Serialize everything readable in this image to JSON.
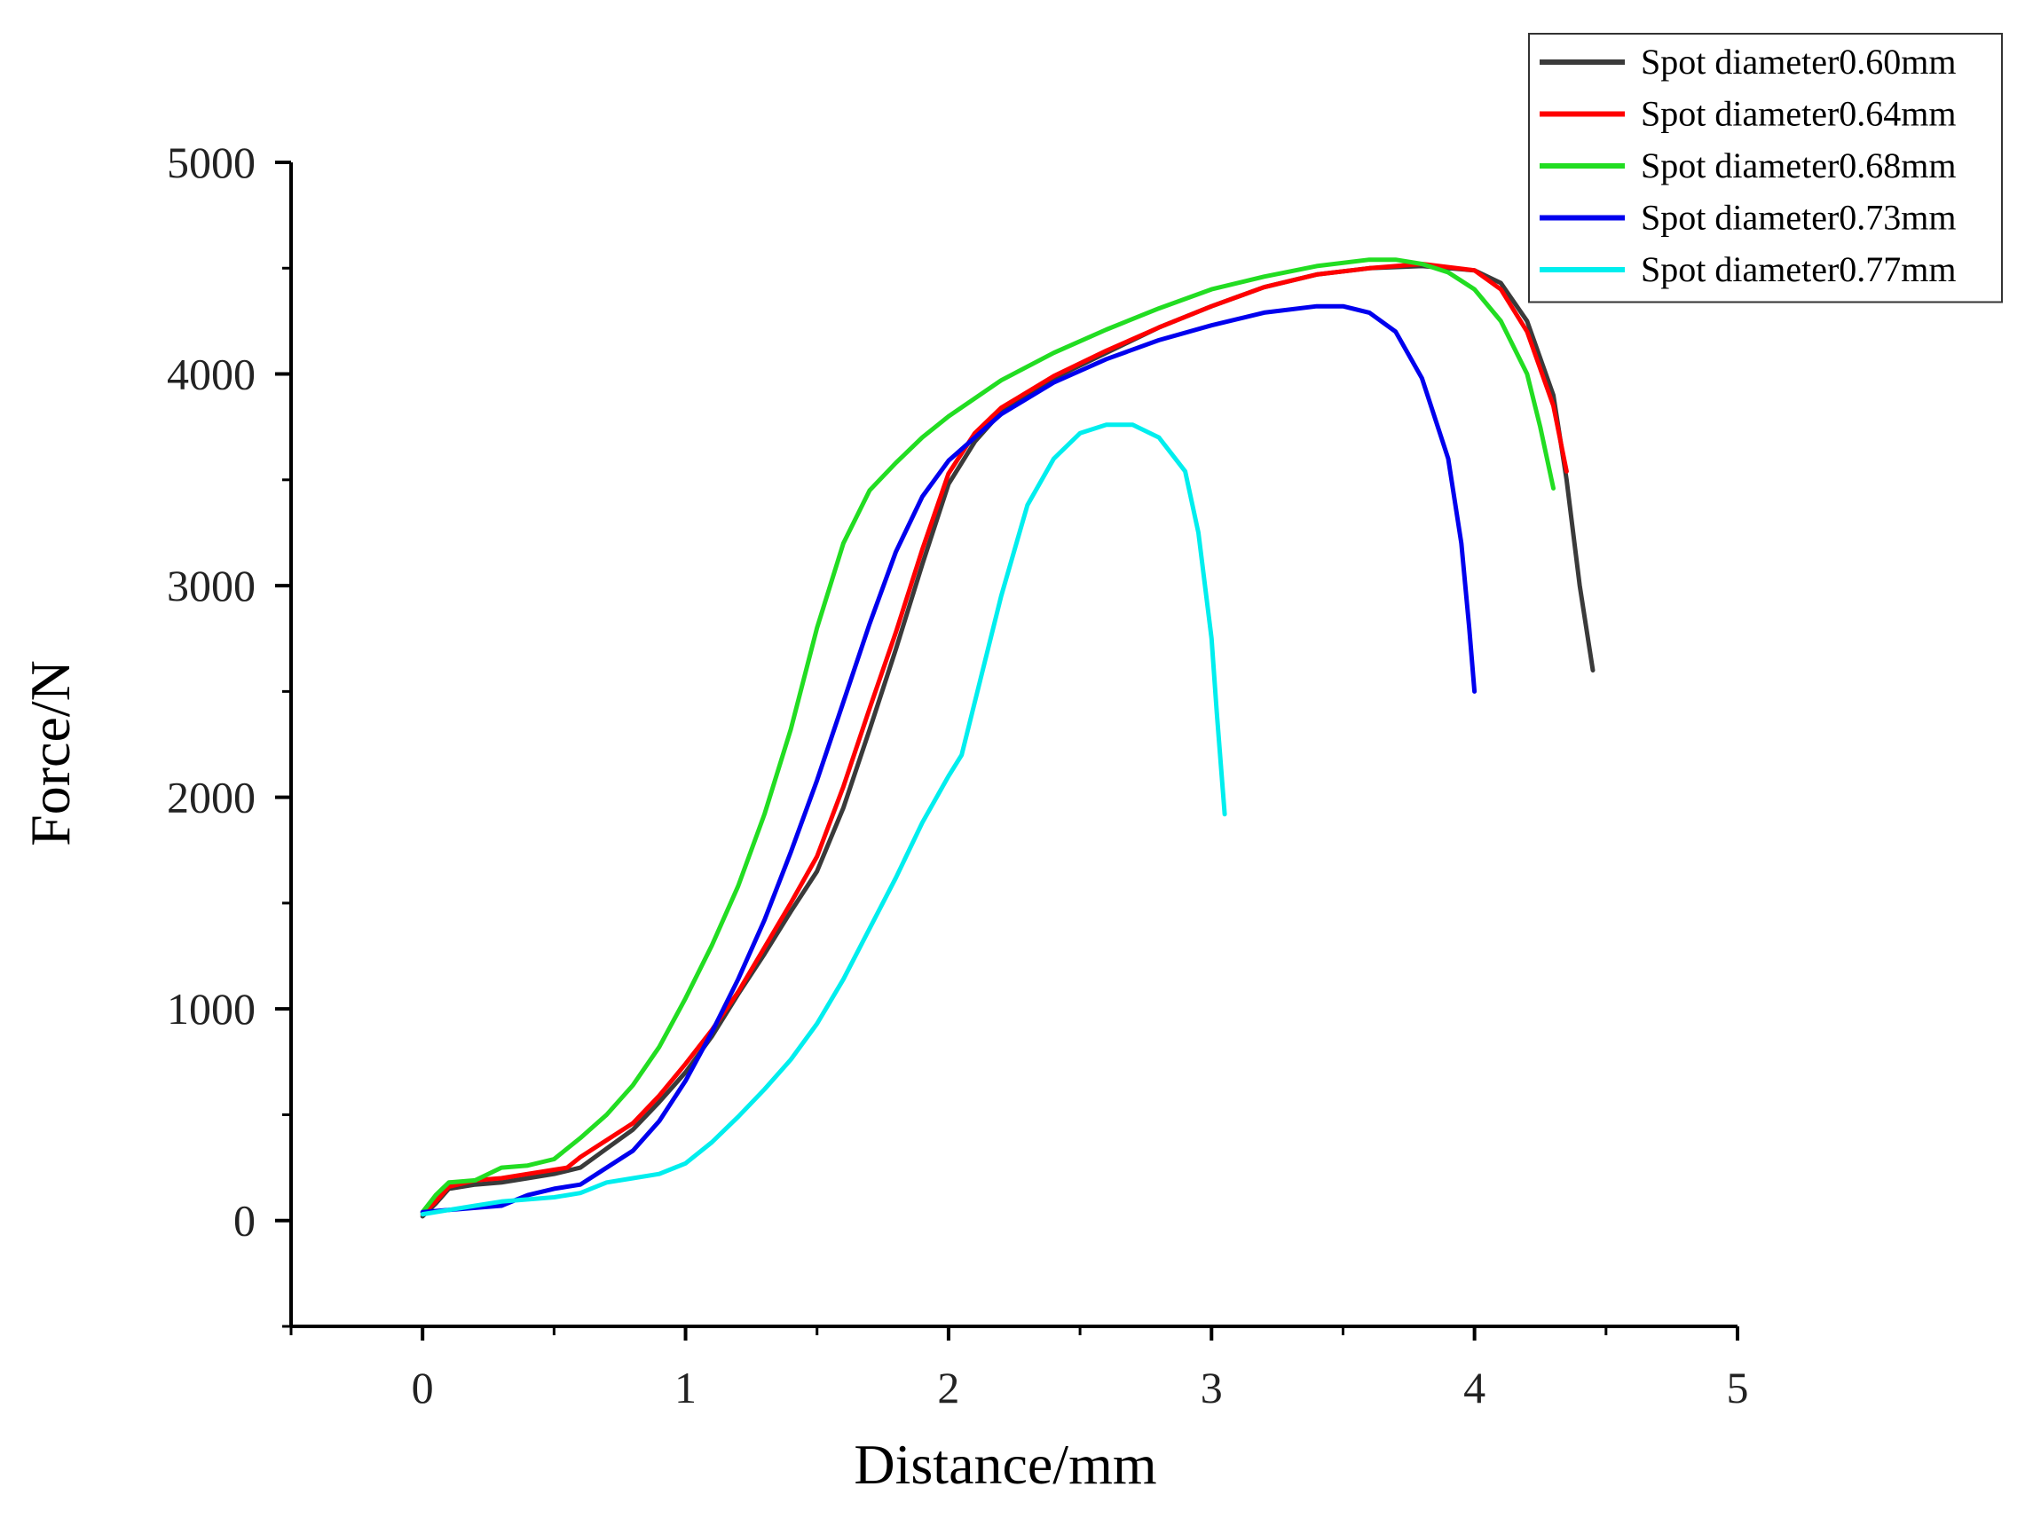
{
  "chart_data": {
    "type": "line",
    "title": "",
    "xlabel": "Distance/mm",
    "ylabel": "Force/N",
    "xlim": [
      -0.5,
      5
    ],
    "ylim": [
      -500,
      5000
    ],
    "xticks": [
      0,
      1,
      2,
      3,
      4,
      5
    ],
    "yticks": [
      0,
      1000,
      2000,
      3000,
      4000,
      5000
    ],
    "xtick_labels": [
      "0",
      "1",
      "2",
      "3",
      "4",
      "5"
    ],
    "ytick_labels": [
      "0",
      "1000",
      "2000",
      "3000",
      "4000",
      "5000"
    ],
    "legend_position": "top-right",
    "series": [
      {
        "name": "Spot diameter0.60mm",
        "color": "#3a3a3a",
        "points": [
          [
            0,
            20
          ],
          [
            0.05,
            80
          ],
          [
            0.1,
            150
          ],
          [
            0.2,
            170
          ],
          [
            0.3,
            180
          ],
          [
            0.4,
            200
          ],
          [
            0.5,
            220
          ],
          [
            0.6,
            250
          ],
          [
            0.7,
            340
          ],
          [
            0.8,
            430
          ],
          [
            0.9,
            560
          ],
          [
            1.0,
            700
          ],
          [
            1.1,
            870
          ],
          [
            1.2,
            1070
          ],
          [
            1.3,
            1260
          ],
          [
            1.4,
            1460
          ],
          [
            1.5,
            1650
          ],
          [
            1.6,
            1950
          ],
          [
            1.7,
            2320
          ],
          [
            1.8,
            2700
          ],
          [
            1.9,
            3100
          ],
          [
            2.0,
            3480
          ],
          [
            2.1,
            3680
          ],
          [
            2.2,
            3820
          ],
          [
            2.4,
            3980
          ],
          [
            2.6,
            4100
          ],
          [
            2.8,
            4220
          ],
          [
            3.0,
            4320
          ],
          [
            3.2,
            4410
          ],
          [
            3.4,
            4470
          ],
          [
            3.6,
            4500
          ],
          [
            3.8,
            4510
          ],
          [
            4.0,
            4490
          ],
          [
            4.1,
            4430
          ],
          [
            4.2,
            4250
          ],
          [
            4.3,
            3900
          ],
          [
            4.35,
            3500
          ],
          [
            4.4,
            3000
          ],
          [
            4.45,
            2600
          ]
        ]
      },
      {
        "name": "Spot diameter0.64mm",
        "color": "#ff0000",
        "points": [
          [
            0,
            30
          ],
          [
            0.05,
            90
          ],
          [
            0.1,
            160
          ],
          [
            0.2,
            190
          ],
          [
            0.3,
            200
          ],
          [
            0.4,
            220
          ],
          [
            0.5,
            240
          ],
          [
            0.55,
            250
          ],
          [
            0.6,
            300
          ],
          [
            0.7,
            380
          ],
          [
            0.8,
            460
          ],
          [
            0.9,
            590
          ],
          [
            1.0,
            740
          ],
          [
            1.1,
            900
          ],
          [
            1.2,
            1080
          ],
          [
            1.3,
            1290
          ],
          [
            1.4,
            1500
          ],
          [
            1.5,
            1720
          ],
          [
            1.6,
            2050
          ],
          [
            1.7,
            2420
          ],
          [
            1.8,
            2780
          ],
          [
            1.9,
            3170
          ],
          [
            2.0,
            3530
          ],
          [
            2.1,
            3720
          ],
          [
            2.2,
            3840
          ],
          [
            2.4,
            3990
          ],
          [
            2.6,
            4110
          ],
          [
            2.8,
            4220
          ],
          [
            3.0,
            4320
          ],
          [
            3.2,
            4410
          ],
          [
            3.4,
            4470
          ],
          [
            3.6,
            4500
          ],
          [
            3.8,
            4520
          ],
          [
            4.0,
            4490
          ],
          [
            4.1,
            4400
          ],
          [
            4.2,
            4200
          ],
          [
            4.3,
            3850
          ],
          [
            4.35,
            3540
          ]
        ]
      },
      {
        "name": "Spot diameter0.68mm",
        "color": "#22dd22",
        "points": [
          [
            0,
            40
          ],
          [
            0.05,
            120
          ],
          [
            0.1,
            180
          ],
          [
            0.2,
            190
          ],
          [
            0.3,
            250
          ],
          [
            0.4,
            260
          ],
          [
            0.5,
            290
          ],
          [
            0.6,
            390
          ],
          [
            0.7,
            500
          ],
          [
            0.8,
            640
          ],
          [
            0.9,
            820
          ],
          [
            1.0,
            1050
          ],
          [
            1.1,
            1300
          ],
          [
            1.2,
            1580
          ],
          [
            1.3,
            1920
          ],
          [
            1.4,
            2320
          ],
          [
            1.5,
            2800
          ],
          [
            1.6,
            3200
          ],
          [
            1.7,
            3450
          ],
          [
            1.8,
            3580
          ],
          [
            1.9,
            3700
          ],
          [
            2.0,
            3800
          ],
          [
            2.2,
            3970
          ],
          [
            2.4,
            4100
          ],
          [
            2.6,
            4210
          ],
          [
            2.8,
            4310
          ],
          [
            3.0,
            4400
          ],
          [
            3.2,
            4460
          ],
          [
            3.4,
            4510
          ],
          [
            3.6,
            4540
          ],
          [
            3.7,
            4540
          ],
          [
            3.8,
            4520
          ],
          [
            3.9,
            4480
          ],
          [
            4.0,
            4400
          ],
          [
            4.1,
            4250
          ],
          [
            4.2,
            4000
          ],
          [
            4.25,
            3750
          ],
          [
            4.3,
            3460
          ]
        ]
      },
      {
        "name": "Spot diameter0.73mm",
        "color": "#0000ee",
        "points": [
          [
            0,
            40
          ],
          [
            0.1,
            50
          ],
          [
            0.2,
            60
          ],
          [
            0.3,
            70
          ],
          [
            0.4,
            120
          ],
          [
            0.5,
            150
          ],
          [
            0.6,
            170
          ],
          [
            0.7,
            250
          ],
          [
            0.8,
            330
          ],
          [
            0.9,
            470
          ],
          [
            1.0,
            660
          ],
          [
            1.1,
            890
          ],
          [
            1.2,
            1140
          ],
          [
            1.3,
            1420
          ],
          [
            1.4,
            1740
          ],
          [
            1.5,
            2080
          ],
          [
            1.6,
            2450
          ],
          [
            1.7,
            2820
          ],
          [
            1.8,
            3160
          ],
          [
            1.9,
            3420
          ],
          [
            2.0,
            3590
          ],
          [
            2.1,
            3700
          ],
          [
            2.2,
            3810
          ],
          [
            2.4,
            3960
          ],
          [
            2.6,
            4070
          ],
          [
            2.8,
            4160
          ],
          [
            3.0,
            4230
          ],
          [
            3.2,
            4290
          ],
          [
            3.4,
            4320
          ],
          [
            3.5,
            4320
          ],
          [
            3.6,
            4290
          ],
          [
            3.7,
            4200
          ],
          [
            3.8,
            3980
          ],
          [
            3.9,
            3600
          ],
          [
            3.95,
            3200
          ],
          [
            3.98,
            2800
          ],
          [
            4.0,
            2500
          ]
        ]
      },
      {
        "name": "Spot diameter0.77mm",
        "color": "#00eeee",
        "points": [
          [
            0,
            30
          ],
          [
            0.1,
            50
          ],
          [
            0.2,
            70
          ],
          [
            0.3,
            90
          ],
          [
            0.4,
            100
          ],
          [
            0.5,
            110
          ],
          [
            0.6,
            130
          ],
          [
            0.7,
            180
          ],
          [
            0.8,
            200
          ],
          [
            0.9,
            220
          ],
          [
            1.0,
            270
          ],
          [
            1.1,
            370
          ],
          [
            1.2,
            490
          ],
          [
            1.3,
            620
          ],
          [
            1.4,
            760
          ],
          [
            1.5,
            930
          ],
          [
            1.6,
            1140
          ],
          [
            1.7,
            1380
          ],
          [
            1.8,
            1620
          ],
          [
            1.9,
            1880
          ],
          [
            2.0,
            2100
          ],
          [
            2.05,
            2200
          ],
          [
            2.1,
            2450
          ],
          [
            2.2,
            2950
          ],
          [
            2.3,
            3380
          ],
          [
            2.4,
            3600
          ],
          [
            2.5,
            3720
          ],
          [
            2.6,
            3760
          ],
          [
            2.7,
            3760
          ],
          [
            2.8,
            3700
          ],
          [
            2.9,
            3540
          ],
          [
            2.95,
            3250
          ],
          [
            3.0,
            2750
          ],
          [
            3.02,
            2400
          ],
          [
            3.05,
            1920
          ]
        ]
      }
    ]
  }
}
